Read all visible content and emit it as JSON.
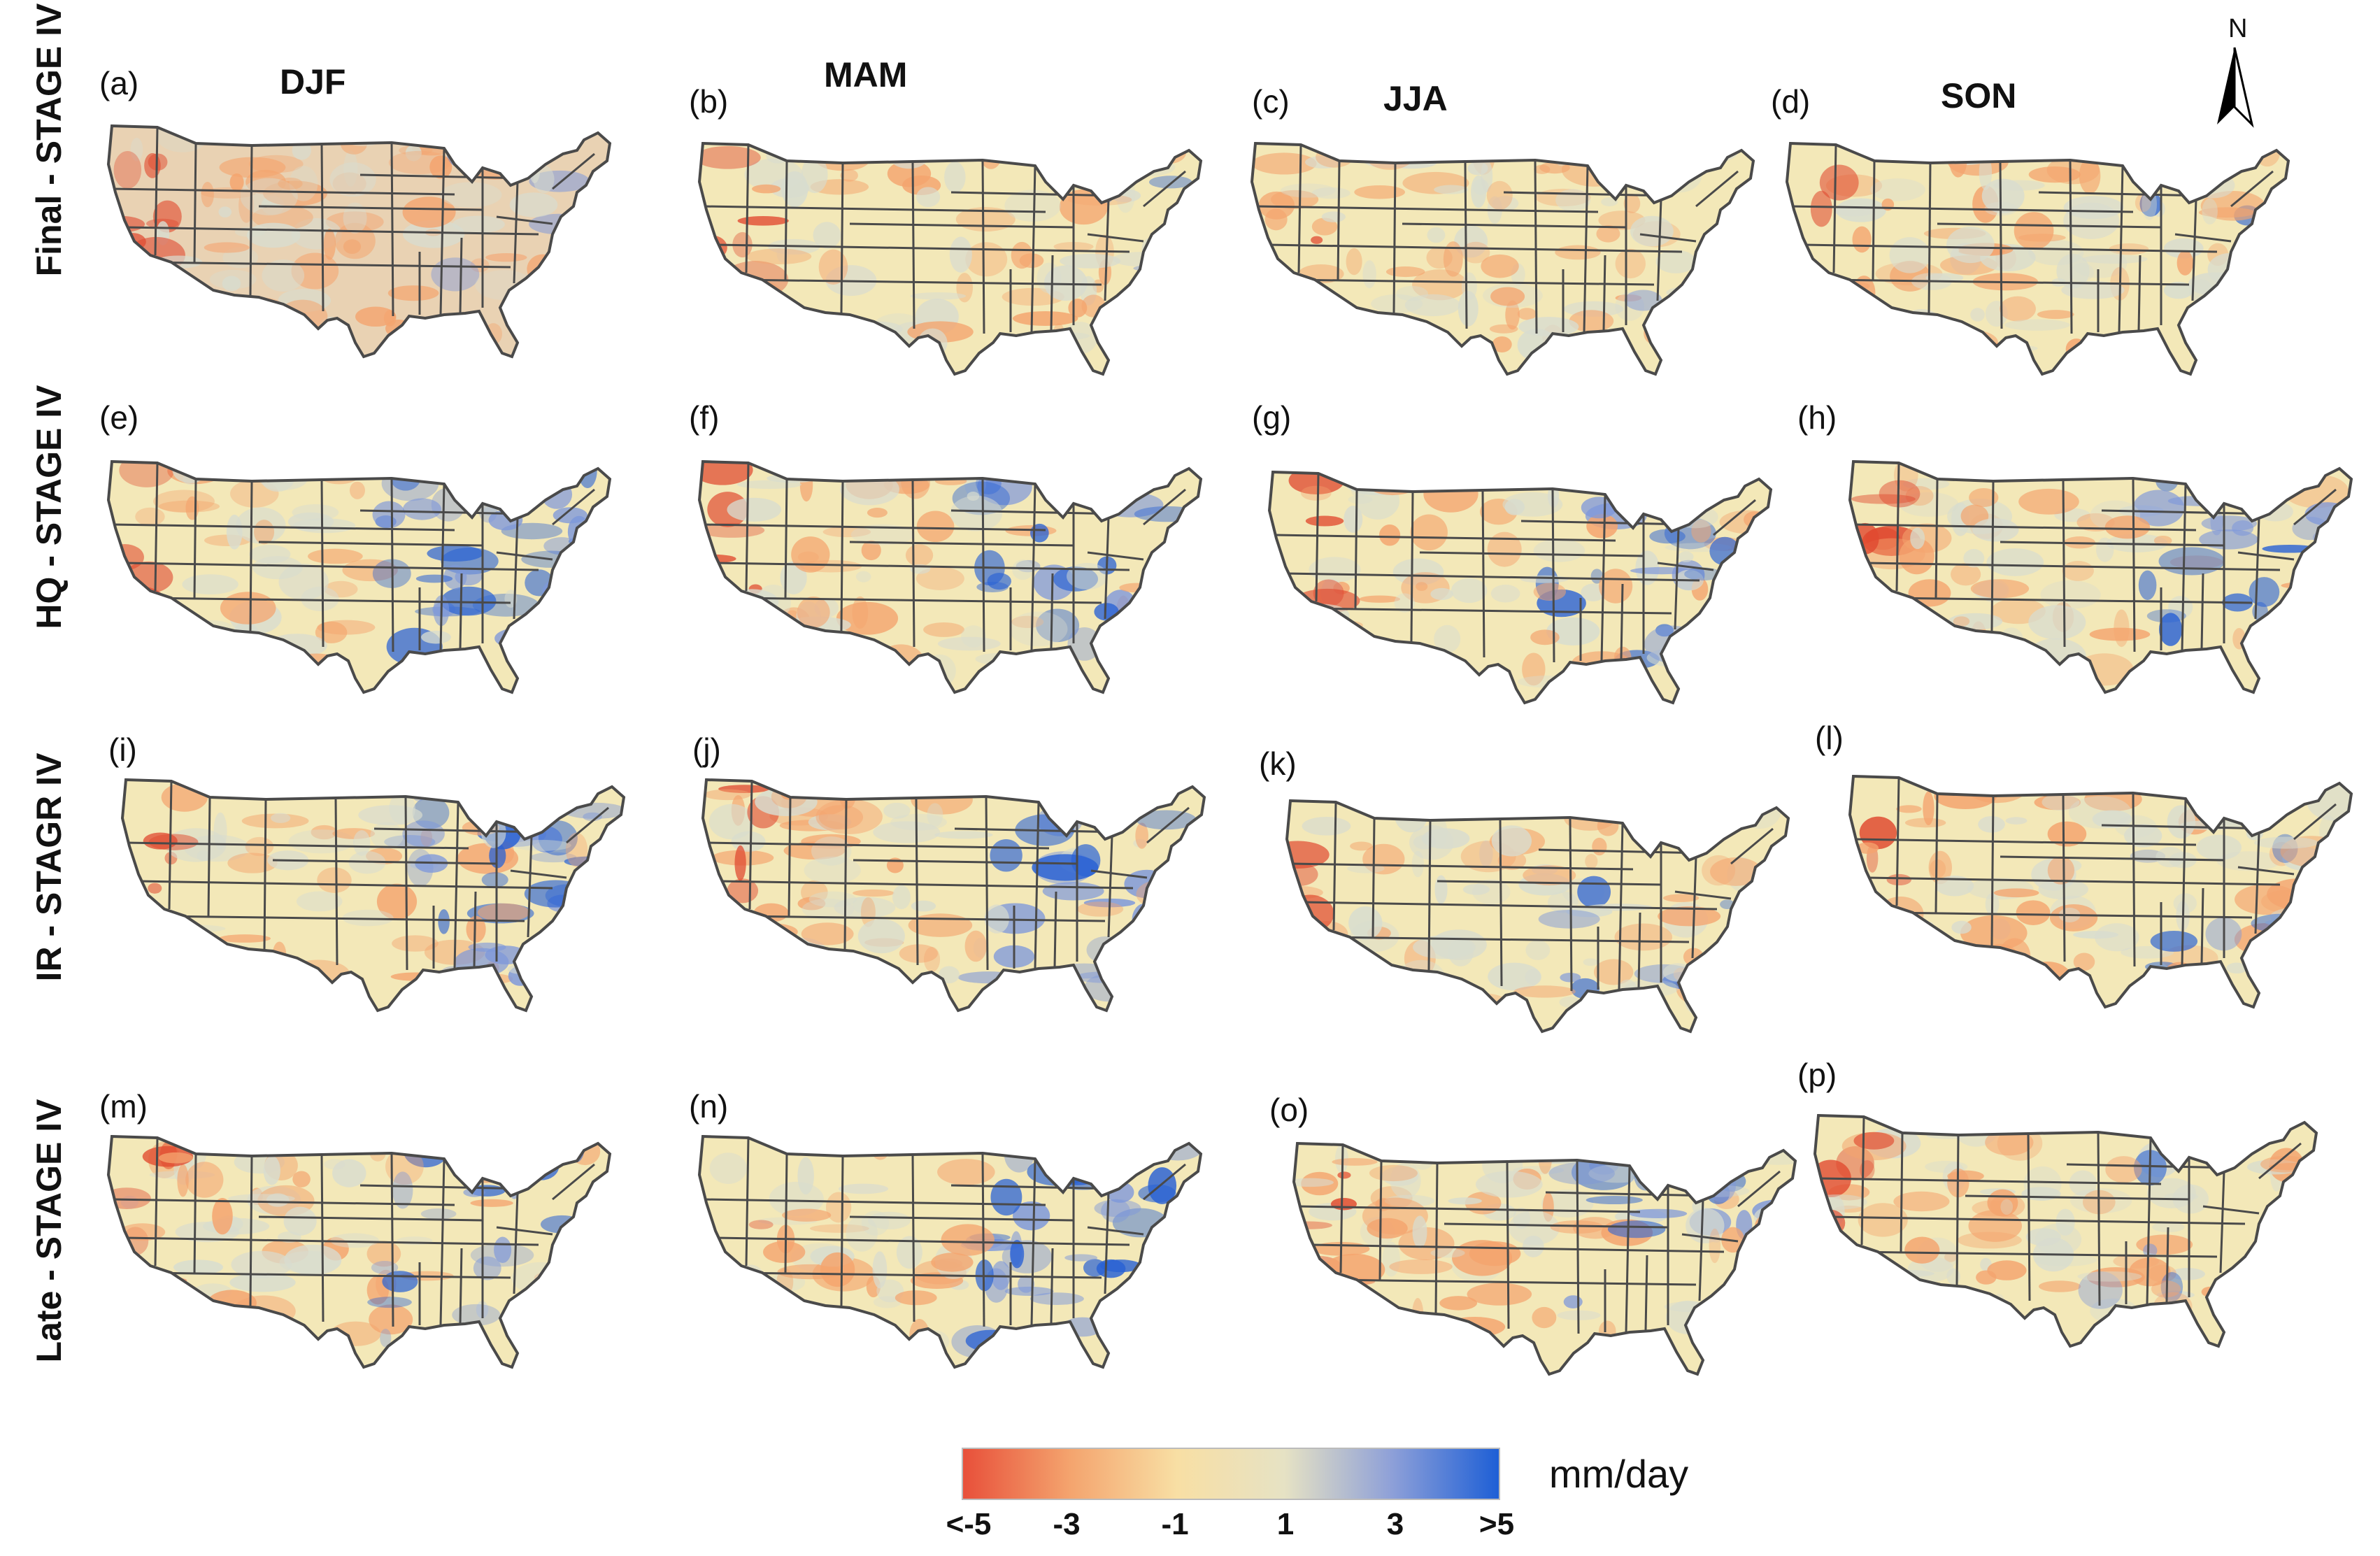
{
  "row_labels": [
    "Final - STAGE IV",
    "HQ - STAGE IV",
    "IR - STAGR IV",
    "Late - STAGE IV"
  ],
  "seasons": [
    "DJF",
    "MAM",
    "JJA",
    "SON"
  ],
  "panel_letters": [
    "(a)",
    "(b)",
    "(c)",
    "(d)",
    "(e)",
    "(f)",
    "(g)",
    "(h)",
    "(i)",
    "(j)",
    "(k)",
    "(l)",
    "(m)",
    "(n)",
    "(o)",
    "(p)"
  ],
  "north_label": "N",
  "colorbar": {
    "ticks": [
      "<-5",
      "-3",
      "-1",
      "1",
      "3",
      ">5"
    ],
    "units": "mm/day",
    "colors": [
      "#e8503a",
      "#f4a46e",
      "#f8dfa4",
      "#e6e2c4",
      "#8ea0d8",
      "#1e5fd6"
    ]
  },
  "colors": {
    "base_fill": "#f3e8b8",
    "state_border": "#4a4a4a",
    "wet_bias": "#2a62d4",
    "dry_bias": "#e04a30"
  }
}
